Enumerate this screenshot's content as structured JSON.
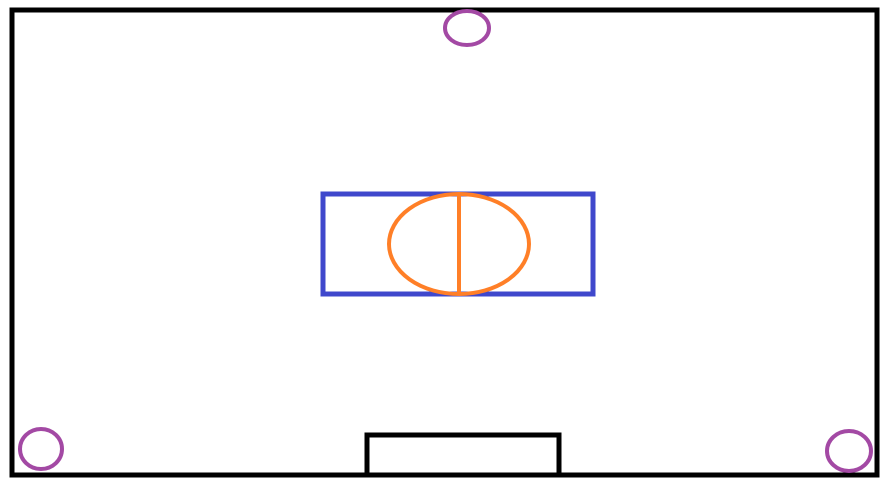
{
  "colors": {
    "background": "#ffffff",
    "outline": "#000000",
    "purple": "#a349a4",
    "blue": "#3f48cc",
    "orange": "#ff7f27"
  },
  "shapes": {
    "room_outline": "rectangle",
    "top_circle": "circle",
    "bottom_left_circle": "circle",
    "bottom_right_circle": "circle",
    "center_rectangle": "rectangle",
    "center_ellipse": "ellipse",
    "center_divider": "line",
    "bottom_box": "rectangle"
  }
}
